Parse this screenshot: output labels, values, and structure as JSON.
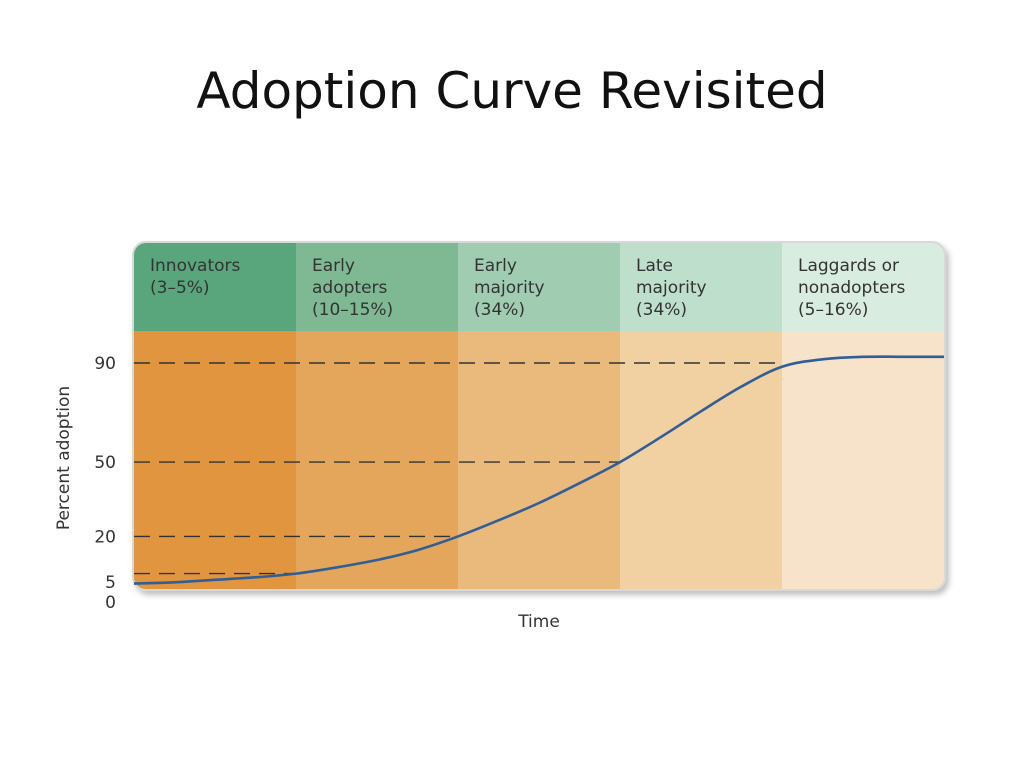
{
  "slide": {
    "title": "Adoption Curve Revisited"
  },
  "chart_data": {
    "type": "line",
    "title": "",
    "xlabel": "Time",
    "ylabel": "Percent adoption",
    "y_ticks": [
      0,
      5,
      20,
      50,
      90
    ],
    "ylim": [
      0,
      100
    ],
    "xlim": [
      0,
      1
    ],
    "grid": "dashed reference lines at 5, 20, 50, 90",
    "categories": [
      {
        "lines": [
          "Innovators",
          "(3–5%)"
        ],
        "band_start": 0.0,
        "band_end": 0.2,
        "header_color": "#5aa67c",
        "fill_color": "#e1953e"
      },
      {
        "lines": [
          "Early",
          "adopters",
          "(10–15%)"
        ],
        "band_start": 0.2,
        "band_end": 0.4,
        "header_color": "#7eb994",
        "fill_color": "#e4a65a"
      },
      {
        "lines": [
          "Early",
          "majority",
          "(34%)"
        ],
        "band_start": 0.4,
        "band_end": 0.6,
        "header_color": "#a0cdb2",
        "fill_color": "#eaba7c"
      },
      {
        "lines": [
          "Late",
          "majority",
          "(34%)"
        ],
        "band_start": 0.6,
        "band_end": 0.8,
        "header_color": "#bedfcb",
        "fill_color": "#f1d0a2"
      },
      {
        "lines": [
          "Laggards or",
          "nonadopters",
          "(5–16%)"
        ],
        "band_start": 0.8,
        "band_end": 1.0,
        "header_color": "#d9ece0",
        "fill_color": "#f7e3c9"
      }
    ],
    "reference_lines": [
      {
        "y": 5,
        "x_end": 0.2
      },
      {
        "y": 20,
        "x_end": 0.4
      },
      {
        "y": 50,
        "x_end": 0.6
      },
      {
        "y": 90,
        "x_end": 0.8
      }
    ],
    "series": [
      {
        "color": "#2f5f96",
        "x": [
          0.0,
          0.05,
          0.1,
          0.15,
          0.2,
          0.25,
          0.3,
          0.35,
          0.4,
          0.45,
          0.5,
          0.55,
          0.6,
          0.65,
          0.7,
          0.75,
          0.8,
          0.85,
          0.9,
          0.95,
          1.0
        ],
        "y": [
          1,
          1.5,
          2.5,
          3.5,
          5,
          7.5,
          10.5,
          14.5,
          20,
          26.5,
          33.5,
          41.5,
          50,
          60,
          70.5,
          80.5,
          88.5,
          91.5,
          92.5,
          92.5,
          92.5
        ]
      }
    ]
  }
}
